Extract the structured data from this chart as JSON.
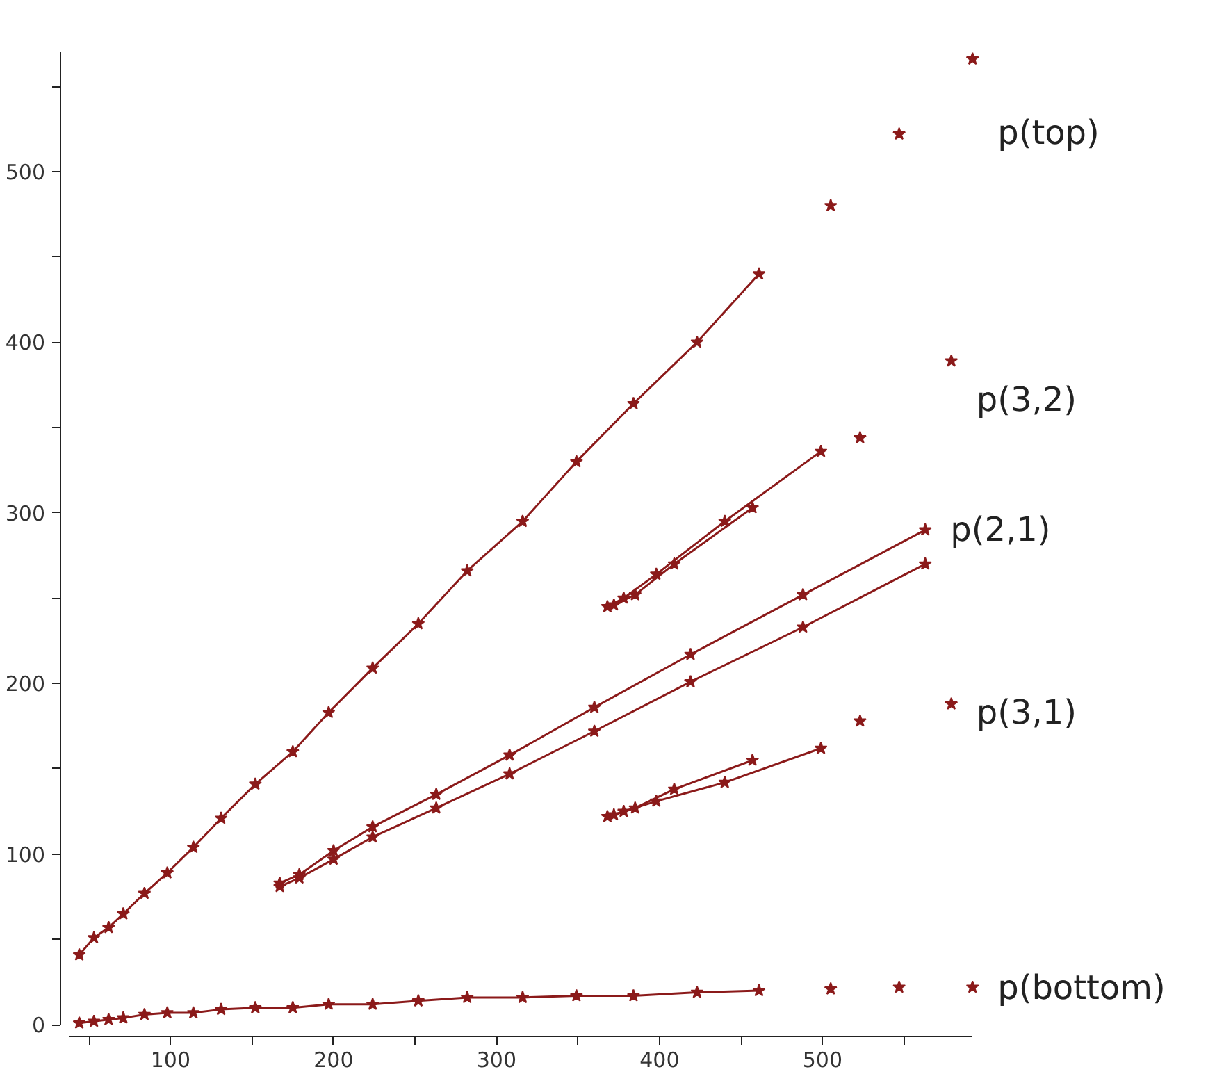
{
  "chart_data": {
    "type": "line",
    "marker": "star",
    "line_style": "solid",
    "grid": false,
    "xlim": [
      38,
      592
    ],
    "ylim": [
      0,
      570
    ],
    "xticks": [
      {
        "value": 50,
        "label": null
      },
      100,
      {
        "value": 150,
        "label": null
      },
      200,
      {
        "value": 250,
        "label": null
      },
      300,
      {
        "value": 350,
        "label": null
      },
      400,
      {
        "value": 450,
        "label": null
      },
      500,
      {
        "value": 550,
        "label": null
      }
    ],
    "yticks": [
      0,
      {
        "value": 50,
        "label": null
      },
      100,
      {
        "value": 150,
        "label": null
      },
      200,
      {
        "value": 250,
        "label": null
      },
      300,
      {
        "value": 350,
        "label": null
      },
      400,
      {
        "value": 450,
        "label": null
      },
      500,
      {
        "value": 550,
        "label": null
      }
    ],
    "series": [
      {
        "color": "#8b1a1a",
        "x": [
          44,
          53,
          62,
          71,
          84,
          98,
          114,
          131,
          152,
          175,
          197,
          224,
          252,
          282,
          316,
          349,
          384,
          423,
          461
        ],
        "values": [
          41,
          51,
          57,
          65,
          77,
          89,
          104,
          121,
          141,
          160,
          183,
          209,
          235,
          266,
          295,
          330,
          364,
          400,
          440
        ]
      },
      {
        "color": "#8b1a1a",
        "x": [
          44,
          53,
          62,
          71,
          84,
          98,
          114,
          131,
          152,
          175,
          197,
          224,
          252,
          282,
          316,
          349,
          384,
          423,
          461
        ],
        "values": [
          1,
          2,
          3,
          4,
          6,
          7,
          7,
          9,
          10,
          10,
          12,
          12,
          14,
          16,
          16,
          17,
          17,
          19,
          20
        ]
      },
      {
        "name": "p(2,1)",
        "color": "#8b1a1a",
        "x": [
          167,
          179,
          200,
          224,
          263,
          308,
          360,
          419,
          488,
          563
        ],
        "values": [
          83,
          88,
          102,
          116,
          135,
          158,
          186,
          217,
          252,
          290
        ]
      },
      {
        "color": "#8b1a1a",
        "x": [
          167,
          179,
          200,
          224,
          263,
          308,
          360,
          419,
          488,
          563
        ],
        "values": [
          81,
          86,
          97,
          110,
          127,
          147,
          172,
          201,
          233,
          270
        ]
      },
      {
        "color": "#8b1a1a",
        "x": [
          368,
          378,
          398,
          440,
          499
        ],
        "values": [
          245,
          250,
          264,
          295,
          336
        ]
      },
      {
        "color": "#8b1a1a",
        "x": [
          372,
          385,
          409,
          457
        ],
        "values": [
          246,
          252,
          270,
          303
        ]
      },
      {
        "color": "#8b1a1a",
        "x": [
          368,
          378,
          398,
          440,
          499
        ],
        "values": [
          122,
          125,
          131,
          142,
          162
        ]
      },
      {
        "color": "#8b1a1a",
        "x": [
          372,
          385,
          409,
          457
        ],
        "values": [
          123,
          127,
          138,
          155
        ]
      },
      {
        "type": "scatter",
        "name": "p(top)",
        "color": "#8b1a1a",
        "x": [
          505,
          547,
          592
        ],
        "values": [
          480,
          522,
          566
        ]
      },
      {
        "type": "scatter",
        "name": "p(3,2)",
        "color": "#8b1a1a",
        "x": [
          523,
          579
        ],
        "values": [
          344,
          389
        ]
      },
      {
        "type": "scatter",
        "name": "p(3,1)",
        "color": "#8b1a1a",
        "x": [
          523,
          579
        ],
        "values": [
          178,
          188
        ]
      },
      {
        "type": "scatter",
        "name": "p(bottom)",
        "color": "#8b1a1a",
        "x": [
          505,
          547,
          592
        ],
        "values": [
          21,
          22,
          22
        ]
      }
    ]
  }
}
